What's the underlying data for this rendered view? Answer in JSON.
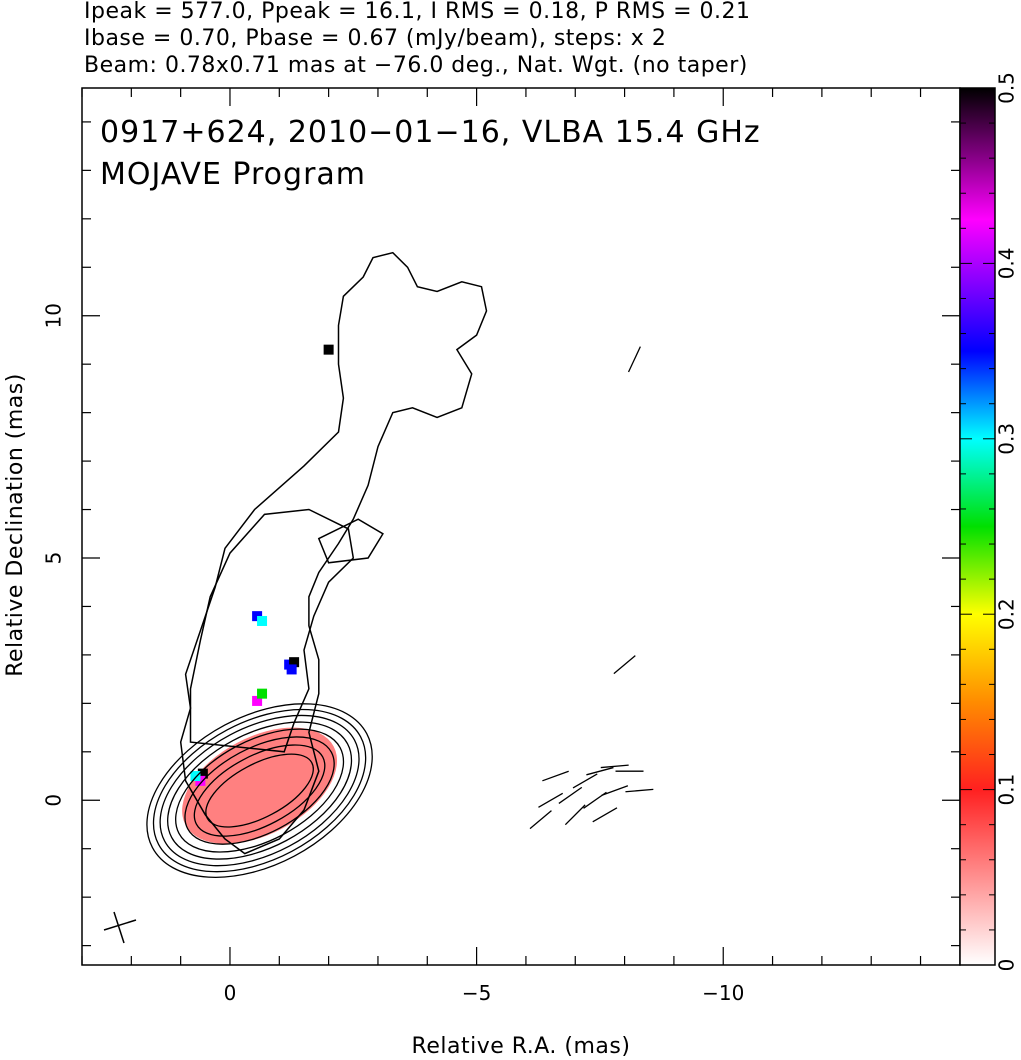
{
  "header": {
    "line1": "Ipeak = 577.0, Ppeak = 16.1, I RMS = 0.18, P RMS = 0.21",
    "line2": "Ibase = 0.70, Pbase = 0.67 (mJy/beam), steps: x 2",
    "line3": "Beam: 0.78x0.71 mas at −76.0 deg., Nat. Wgt. (no taper)"
  },
  "panel": {
    "title_line1": "0917+624, 2010−01−16, VLBA 15.4 GHz",
    "title_line2": "MOJAVE Program"
  },
  "chart_data": {
    "type": "heatmap",
    "xlabel": "Relative R.A. (mas)",
    "ylabel": "Relative Declination (mas)",
    "xlim": [
      3.0,
      -14.8
    ],
    "ylim": [
      -3.4,
      14.7
    ],
    "x_ticks": [
      0,
      -5,
      -10
    ],
    "x_tick_labels": [
      "0",
      "−5",
      "−10"
    ],
    "y_ticks": [
      0,
      5,
      10
    ],
    "y_tick_labels": [
      "0",
      "5",
      "10"
    ],
    "colorbar": {
      "range": [
        0,
        0.5
      ],
      "ticks": [
        0,
        0.1,
        0.2,
        0.3,
        0.4,
        0.5
      ],
      "tick_labels": [
        "0",
        "0.1",
        "0.2",
        "0.3",
        "0.4",
        "0.5"
      ],
      "colors": [
        "#ffffff",
        "#ff2020",
        "#ff8c00",
        "#ffff00",
        "#00e000",
        "#00ffff",
        "#0000ff",
        "#ff00ff",
        "#000000"
      ]
    },
    "beam_mas": {
      "major": 0.78,
      "minor": 0.71,
      "pa_deg": -76.0
    },
    "intensity_contours_mas": {
      "core_center": [
        -0.6,
        0.2
      ],
      "core_levels": [
        {
          "a": 1.2,
          "b": 0.55
        },
        {
          "a": 1.45,
          "b": 0.72
        },
        {
          "a": 1.65,
          "b": 0.88
        },
        {
          "a": 1.85,
          "b": 1.03
        },
        {
          "a": 2.02,
          "b": 1.17
        },
        {
          "a": 2.18,
          "b": 1.3
        },
        {
          "a": 2.32,
          "b": 1.42
        },
        {
          "a": 2.46,
          "b": 1.53
        }
      ],
      "core_pa_deg": 28,
      "outer_jet": [
        [
          0.1,
          -0.8
        ],
        [
          0.5,
          -0.3
        ],
        [
          0.9,
          0.4
        ],
        [
          1.0,
          1.2
        ],
        [
          0.8,
          1.9
        ],
        [
          0.9,
          2.6
        ],
        [
          0.6,
          3.5
        ],
        [
          0.3,
          4.4
        ],
        [
          0.1,
          5.2
        ],
        [
          -0.5,
          6.0
        ],
        [
          -1.5,
          6.9
        ],
        [
          -2.2,
          7.6
        ],
        [
          -2.3,
          8.3
        ],
        [
          -2.2,
          9.0
        ],
        [
          -2.2,
          9.8
        ],
        [
          -2.3,
          10.4
        ],
        [
          -2.7,
          10.8
        ],
        [
          -2.9,
          11.2
        ],
        [
          -3.3,
          11.3
        ],
        [
          -3.6,
          11.0
        ],
        [
          -3.8,
          10.6
        ],
        [
          -4.2,
          10.5
        ],
        [
          -4.7,
          10.7
        ],
        [
          -5.1,
          10.6
        ],
        [
          -5.2,
          10.1
        ],
        [
          -5.0,
          9.6
        ],
        [
          -4.6,
          9.3
        ],
        [
          -4.9,
          8.8
        ],
        [
          -4.7,
          8.1
        ],
        [
          -4.2,
          7.9
        ],
        [
          -3.7,
          8.1
        ],
        [
          -3.3,
          8.0
        ],
        [
          -3.0,
          7.3
        ],
        [
          -2.8,
          6.5
        ],
        [
          -2.5,
          5.8
        ],
        [
          -2.2,
          5.3
        ],
        [
          -1.8,
          4.7
        ],
        [
          -1.6,
          4.2
        ],
        [
          -1.6,
          3.6
        ],
        [
          -1.8,
          2.9
        ],
        [
          -1.8,
          2.2
        ],
        [
          -1.6,
          1.4
        ],
        [
          -1.8,
          0.6
        ],
        [
          -1.5,
          -0.2
        ],
        [
          -1.0,
          -0.8
        ],
        [
          -0.3,
          -1.1
        ]
      ],
      "mid_jet": [
        [
          0.8,
          1.2
        ],
        [
          0.8,
          2.3
        ],
        [
          0.6,
          3.3
        ],
        [
          0.4,
          4.2
        ],
        [
          0.0,
          5.1
        ],
        [
          -0.7,
          5.9
        ],
        [
          -1.6,
          6.0
        ],
        [
          -2.4,
          5.6
        ],
        [
          -2.5,
          5.0
        ],
        [
          -2.0,
          4.5
        ],
        [
          -1.7,
          3.8
        ],
        [
          -1.5,
          3.1
        ],
        [
          -1.6,
          2.3
        ],
        [
          -1.3,
          1.6
        ],
        [
          -1.1,
          1.0
        ]
      ],
      "knot": [
        [
          -1.8,
          5.4
        ],
        [
          -2.6,
          5.8
        ],
        [
          -3.1,
          5.5
        ],
        [
          -2.8,
          5.0
        ],
        [
          -2.0,
          4.9
        ]
      ]
    },
    "polarization_pixels_mas": [
      {
        "x": 0.55,
        "y": 0.55,
        "value": 0.5
      },
      {
        "x": 0.6,
        "y": 0.4,
        "value": 0.45
      },
      {
        "x": 0.7,
        "y": 0.5,
        "value": 0.3
      },
      {
        "x": -0.55,
        "y": 3.8,
        "value": 0.38
      },
      {
        "x": -0.65,
        "y": 3.7,
        "value": 0.32
      },
      {
        "x": -1.2,
        "y": 2.8,
        "value": 0.38
      },
      {
        "x": -1.3,
        "y": 2.85,
        "value": 0.5
      },
      {
        "x": -1.25,
        "y": 2.7,
        "value": 0.42
      },
      {
        "x": -0.55,
        "y": 2.05,
        "value": 0.45
      },
      {
        "x": -0.65,
        "y": 2.2,
        "value": 0.28
      },
      {
        "x": -2.0,
        "y": 9.3,
        "value": 0.5
      }
    ],
    "polarized_core_region": {
      "center": [
        -0.6,
        0.3
      ],
      "a": 1.7,
      "b": 1.0,
      "pa_deg": 28,
      "value": 0.05
    },
    "evpa_vectors_mas": [
      {
        "x": -8.2,
        "y": 9.1,
        "pa": 65
      },
      {
        "x": -8.0,
        "y": 2.8,
        "pa": 40
      },
      {
        "x": -6.6,
        "y": 0.5,
        "pa": 20
      },
      {
        "x": -6.9,
        "y": 0.1,
        "pa": 35
      },
      {
        "x": -7.2,
        "y": 0.4,
        "pa": 30
      },
      {
        "x": -7.5,
        "y": 0.6,
        "pa": 15
      },
      {
        "x": -7.8,
        "y": 0.7,
        "pa": 5
      },
      {
        "x": -8.1,
        "y": 0.6,
        "pa": 0
      },
      {
        "x": -7.0,
        "y": -0.3,
        "pa": 45
      },
      {
        "x": -7.4,
        "y": 0.0,
        "pa": 35
      },
      {
        "x": -7.8,
        "y": 0.2,
        "pa": 20
      },
      {
        "x": -8.3,
        "y": 0.2,
        "pa": 5
      },
      {
        "x": -6.5,
        "y": 0.0,
        "pa": 30
      },
      {
        "x": -6.3,
        "y": -0.4,
        "pa": 40
      },
      {
        "x": -7.6,
        "y": -0.3,
        "pa": 30
      }
    ]
  }
}
